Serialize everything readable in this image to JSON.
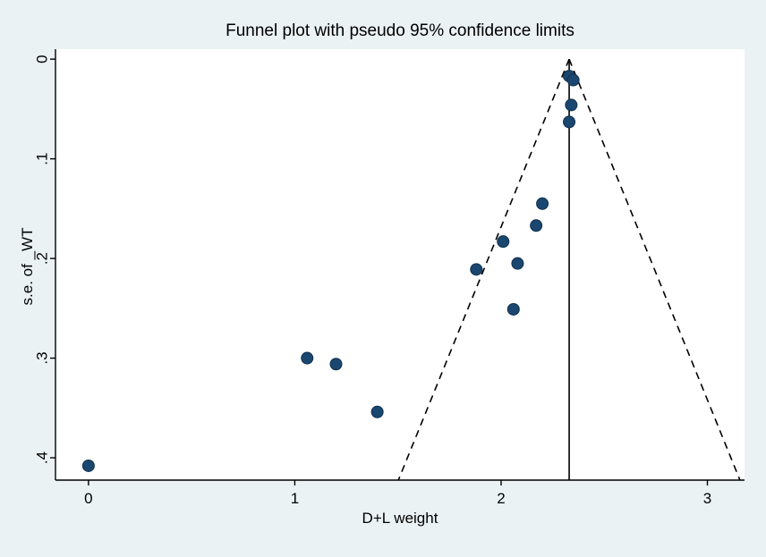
{
  "page": {
    "background": "#eaf2f3",
    "plot_background": "#ffffff"
  },
  "chart_data": {
    "type": "scatter",
    "title": "Funnel plot with pseudo 95% confidence limits",
    "xlabel": "D+L weight",
    "ylabel": "s.e. of _WT",
    "xlim": [
      -0.16,
      3.18
    ],
    "ylim": [
      -0.01,
      0.4224
    ],
    "y_axis_reversed": true,
    "grid": false,
    "legend": "none",
    "x_ticks": [
      {
        "value": 0,
        "label": "0"
      },
      {
        "value": 1,
        "label": "1"
      },
      {
        "value": 2,
        "label": "2"
      },
      {
        "value": 3,
        "label": "3"
      }
    ],
    "y_ticks": [
      {
        "value": 0,
        "label": "0"
      },
      {
        "value": 0.1,
        "label": ".1"
      },
      {
        "value": 0.2,
        "label": ".2"
      },
      {
        "value": 0.3,
        "label": ".3"
      },
      {
        "value": 0.4,
        "label": ".4"
      }
    ],
    "points": [
      [
        0.0,
        0.408
      ],
      [
        1.06,
        0.3
      ],
      [
        1.2,
        0.306
      ],
      [
        1.4,
        0.354
      ],
      [
        1.88,
        0.211
      ],
      [
        2.01,
        0.183
      ],
      [
        2.08,
        0.205
      ],
      [
        2.06,
        0.251
      ],
      [
        2.17,
        0.167
      ],
      [
        2.2,
        0.145
      ],
      [
        2.33,
        0.063
      ],
      [
        2.34,
        0.046
      ],
      [
        2.33,
        0.017
      ],
      [
        2.35,
        0.021
      ]
    ],
    "funnel": {
      "center_x": 2.33,
      "apex_y": 0,
      "slope": 1.96,
      "line_style": "dashed"
    },
    "vertical_line_x": 2.33,
    "marker_color": "#1a476f",
    "marker_stroke": "#10304e",
    "line_color": "#000000",
    "axis_color": "#000000"
  }
}
